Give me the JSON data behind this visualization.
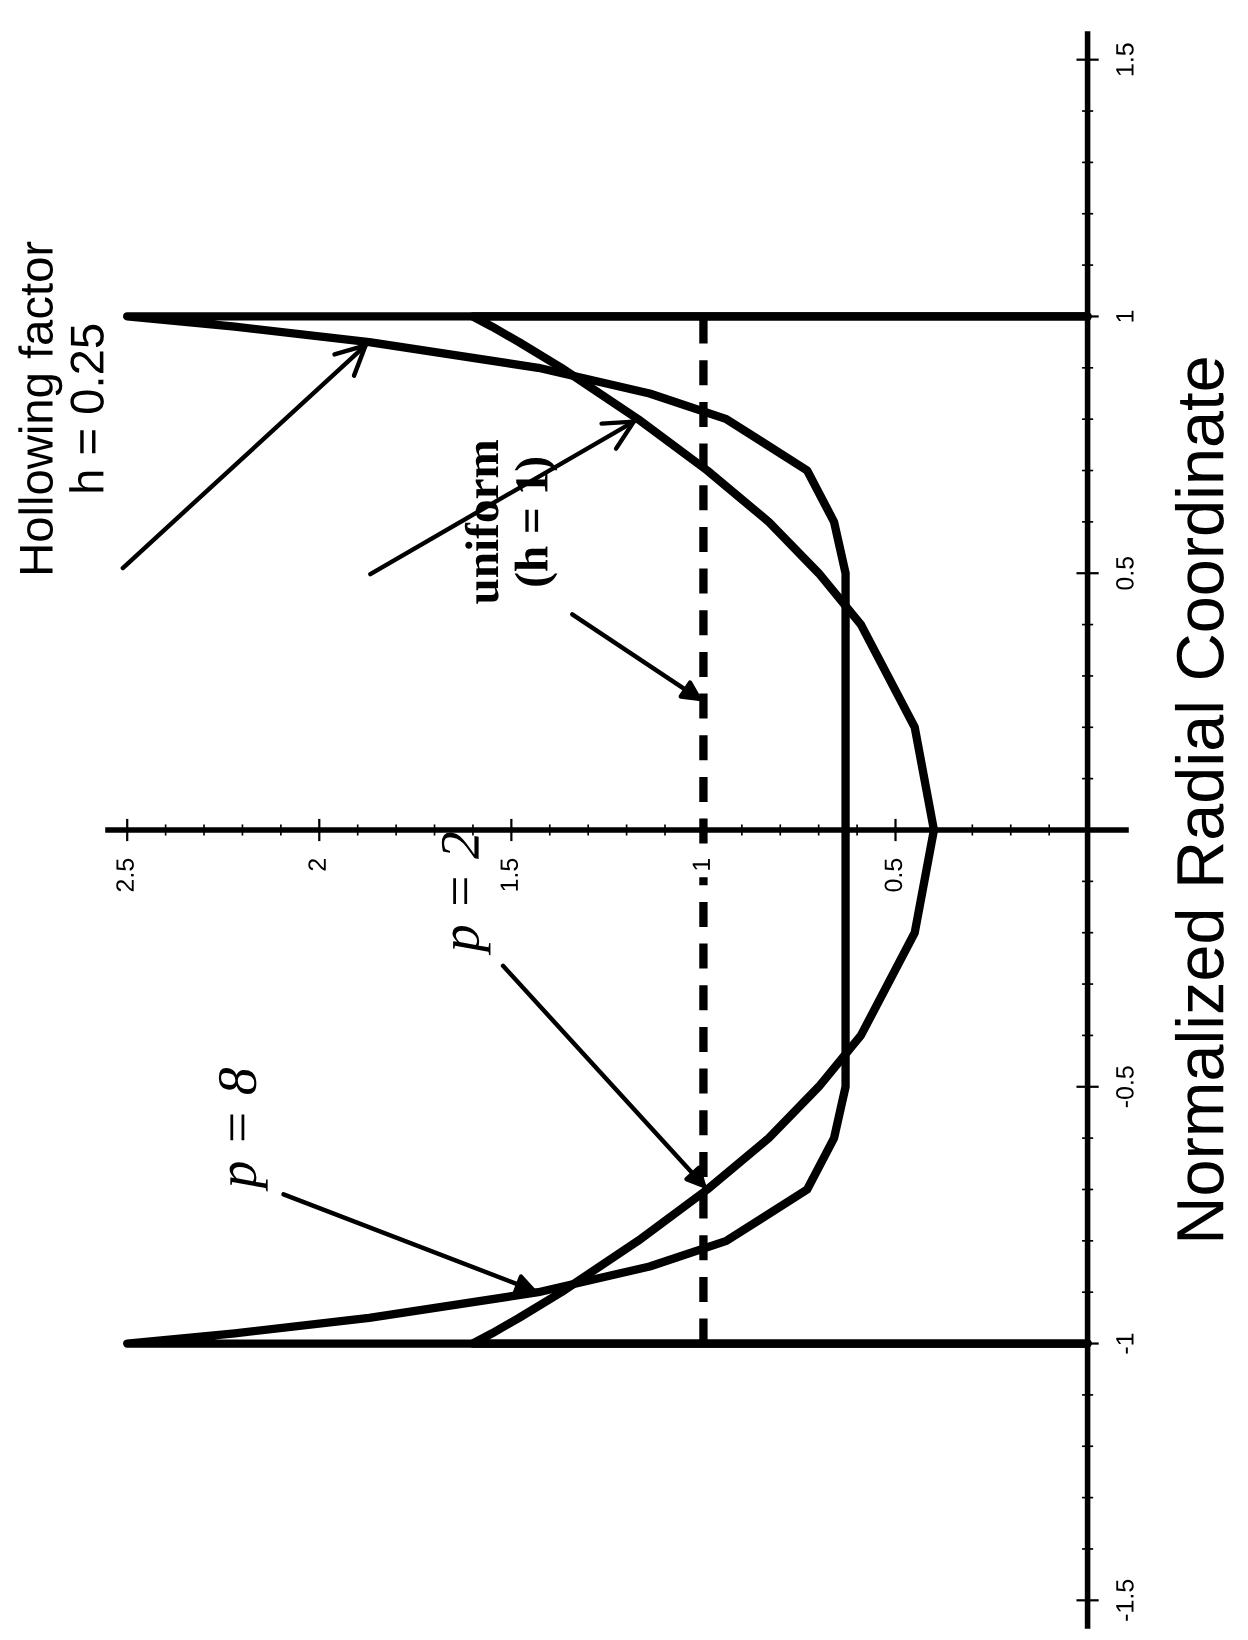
{
  "chart_data": {
    "type": "line",
    "ylabel": "Normalized Radial Coordinate",
    "xlim": [
      2.55,
      -0.1
    ],
    "xticks": [
      2.5,
      2,
      1.5,
      1,
      0.5
    ],
    "ylim": [
      -1.55,
      1.55
    ],
    "yticks": [
      -1.5,
      -1,
      -0.5,
      0.5,
      1,
      1.5
    ],
    "grid": false,
    "legend": false,
    "series": [
      {
        "color": "#000000",
        "line_style": "solid",
        "values": [
          -1,
          -1,
          -0.98,
          -0.95,
          -0.9,
          -0.85,
          -0.8,
          -0.7,
          -0.6,
          -0.5,
          -0.4,
          -0.2,
          0,
          0.2,
          0.4,
          0.5,
          0.6,
          0.7,
          0.8,
          0.85,
          0.9,
          0.95,
          0.98,
          1,
          1
        ],
        "x": [
          0,
          2.5,
          2.22,
          1.87,
          1.43,
          1.14,
          0.94,
          0.73,
          0.66,
          0.63,
          0.63,
          0.63,
          0.63,
          0.63,
          0.63,
          0.63,
          0.66,
          0.73,
          0.94,
          1.14,
          1.43,
          1.87,
          2.22,
          2.5,
          0
        ]
      },
      {
        "color": "#000000",
        "line_style": "solid",
        "values": [
          -1,
          -1,
          -0.98,
          -0.95,
          -0.9,
          -0.85,
          -0.8,
          -0.7,
          -0.6,
          -0.5,
          -0.4,
          -0.2,
          0,
          0.2,
          0.4,
          0.5,
          0.6,
          0.7,
          0.8,
          0.85,
          0.9,
          0.95,
          0.98,
          1,
          1
        ],
        "x": [
          0,
          1.6,
          1.55,
          1.48,
          1.37,
          1.27,
          1.17,
          0.99,
          0.83,
          0.7,
          0.59,
          0.45,
          0.4,
          0.45,
          0.59,
          0.7,
          0.83,
          0.99,
          1.17,
          1.27,
          1.37,
          1.48,
          1.55,
          1.6,
          0
        ]
      },
      {
        "color": "#000000",
        "line_style": "dashed",
        "x": [
          1,
          1
        ],
        "values": [
          -1,
          1
        ]
      }
    ],
    "annotations": [
      {
        "text": "Hollowing factor\nh = 0.25",
        "x": 1.87,
        "y": 0.95
      },
      {
        "text": "uniform\n(h = 1)",
        "x": 1,
        "y": 0.25
      },
      {
        "text": "p = 2",
        "x": 0.99,
        "y": -0.7
      },
      {
        "text": "p = 8",
        "x": 1.43,
        "y": -0.9
      }
    ]
  }
}
